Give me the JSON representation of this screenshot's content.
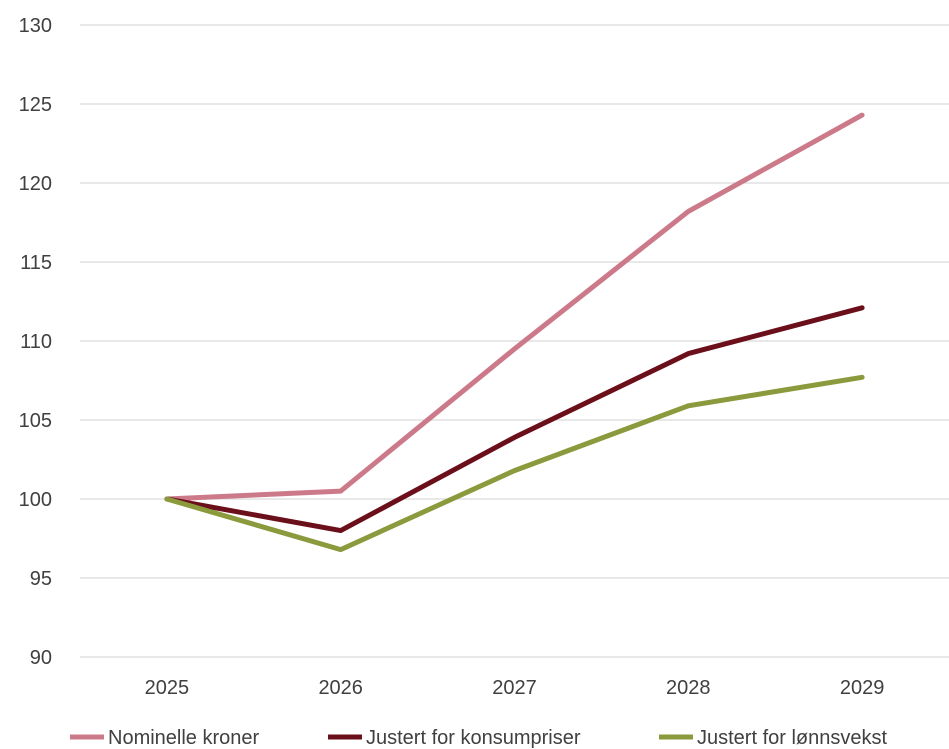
{
  "chart_data": {
    "type": "line",
    "title": "",
    "xlabel": "",
    "ylabel": "",
    "x": [
      "2025",
      "2026",
      "2027",
      "2028",
      "2029"
    ],
    "yticks": [
      "90",
      "95",
      "100",
      "105",
      "110",
      "115",
      "120",
      "125",
      "130"
    ],
    "ylim": [
      90,
      130
    ],
    "grid": true,
    "legend_position": "bottom",
    "series": [
      {
        "name": "Nominelle kroner",
        "color": "#CC7A8A",
        "values": [
          100,
          100.5,
          109.5,
          118.2,
          124.3
        ]
      },
      {
        "name": "Justert for konsumpriser",
        "color": "#6B0F1A",
        "values": [
          100,
          98.0,
          103.9,
          109.2,
          112.1
        ]
      },
      {
        "name": "Justert for lønnsvekst",
        "color": "#8A9A3C",
        "values": [
          100,
          96.8,
          101.8,
          105.9,
          107.7
        ]
      }
    ]
  }
}
